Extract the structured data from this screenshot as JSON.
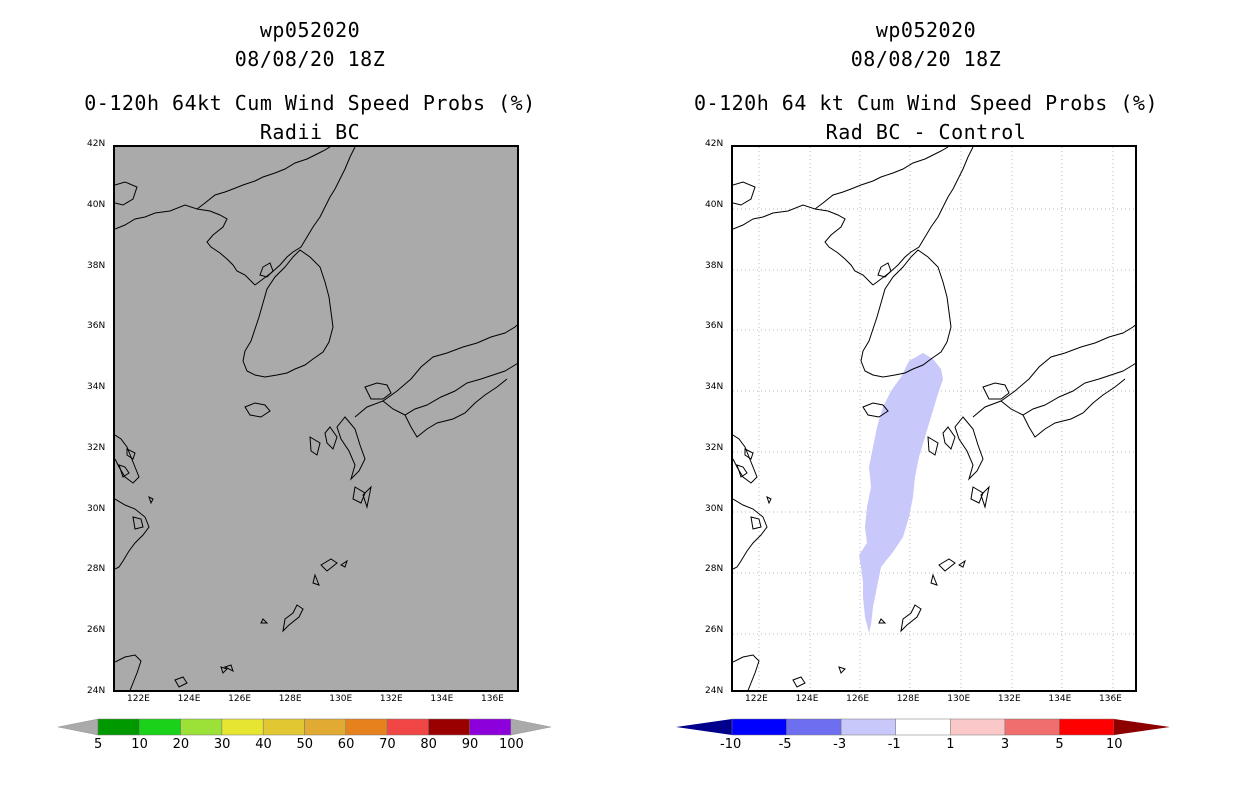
{
  "left_panel": {
    "line1": "wp052020",
    "line2": "08/08/20 18Z",
    "line3": "0-120h 64kt Cum Wind Speed Probs (%)",
    "line4": "Radii BC",
    "background_color": "#aaaaaa",
    "colorbar": {
      "labels": [
        "5",
        "10",
        "20",
        "30",
        "40",
        "50",
        "60",
        "70",
        "80",
        "90",
        "100"
      ],
      "colors": [
        "#009a00",
        "#19d219",
        "#9be137",
        "#e6e632",
        "#e1c832",
        "#e1aa32",
        "#e6821e",
        "#f04646",
        "#9b0000",
        "#8c00dc"
      ],
      "end_left": "#aaaaaa",
      "end_right": "#aaaaaa"
    }
  },
  "right_panel": {
    "line1": "wp052020",
    "line2": "08/08/20 18Z",
    "line3": "0-120h 64 kt Cum Wind Speed Probs (%)",
    "line4": "Rad BC - Control",
    "background_color": "#ffffff",
    "shade_color": "#c8c8fa",
    "colorbar": {
      "labels": [
        "-10",
        "-5",
        "-3",
        "-1",
        "1",
        "3",
        "5",
        "10"
      ],
      "colors": [
        "#0000ff",
        "#6e6ef0",
        "#c8c8fa",
        "#ffffff",
        "#fac8c8",
        "#f06e6e",
        "#ff0000"
      ],
      "end_left": "#00008c",
      "end_right": "#8c0000"
    }
  },
  "axes": {
    "x_ticks": [
      "122E",
      "124E",
      "126E",
      "128E",
      "130E",
      "132E",
      "134E",
      "136E"
    ],
    "y_ticks": [
      "42N",
      "40N",
      "38N",
      "36N",
      "34N",
      "32N",
      "30N",
      "28N",
      "26N",
      "24N"
    ]
  }
}
